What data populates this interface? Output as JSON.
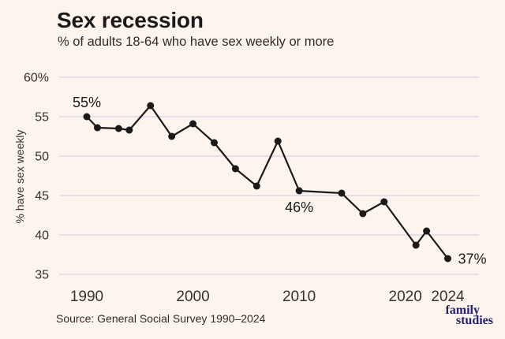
{
  "colors": {
    "background": "#fdf4ee",
    "line": "#1b1a18",
    "grid": "#e4e1e6",
    "text": "#1b1a18",
    "muted": "#34322f",
    "logo_navy": "#232070"
  },
  "chart_data": {
    "type": "line",
    "title": "Sex recession",
    "subtitle": "% of adults 18-64 who have sex weekly or more",
    "ylabel": "% have sex weekly",
    "source": "Source: General Social Survey 1990–2024",
    "x": [
      1990,
      1991,
      1993,
      1994,
      1996,
      1998,
      2000,
      2002,
      2004,
      2006,
      2008,
      2010,
      2014,
      2016,
      2018,
      2021,
      2022,
      2024
    ],
    "values": [
      55.0,
      53.6,
      53.5,
      53.3,
      56.4,
      52.5,
      54.1,
      51.7,
      48.4,
      46.2,
      51.9,
      45.6,
      45.3,
      42.7,
      44.2,
      38.7,
      40.5,
      37.0
    ],
    "x_ticks": [
      1990,
      2000,
      2010,
      2020,
      2024
    ],
    "y_ticks": [
      {
        "value": 60,
        "label": "60%"
      },
      {
        "value": 55,
        "label": "55"
      },
      {
        "value": 50,
        "label": "50"
      },
      {
        "value": 45,
        "label": "45"
      },
      {
        "value": 40,
        "label": "40"
      },
      {
        "value": 35,
        "label": "35"
      }
    ],
    "ylim": [
      35,
      60
    ],
    "grid": "horizontal-only",
    "legend": "none",
    "annotations": [
      {
        "year": 1990,
        "value": 55.0,
        "text": "55%",
        "placement": "above"
      },
      {
        "year": 2010,
        "value": 45.6,
        "text": "46%",
        "placement": "below"
      },
      {
        "year": 2024,
        "value": 37.0,
        "text": "37%",
        "placement": "right"
      }
    ]
  },
  "footer": {
    "logo_line1": "family",
    "logo_line2": "studies"
  }
}
